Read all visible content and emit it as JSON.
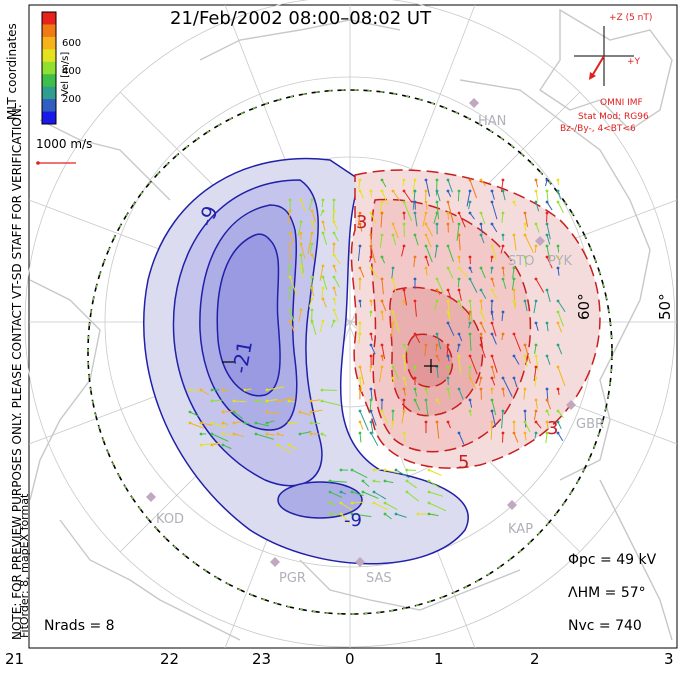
{
  "title": "21/Feb/2002 08:00–08:02 UT",
  "side_notes": {
    "preview": "NOTE: FOR PREVIEW PURPOSES ONLY. PLEASE CONTACT VT-SD STAFF FOR VERIFICATION.",
    "fitorder": "FitOrder: 8, mapEX format",
    "coords": "MLT coordinates"
  },
  "colorbar": {
    "title": "Vel [m/s]",
    "ticks": [
      "600",
      "400",
      "200"
    ],
    "colors": [
      "#e8231c",
      "#f07a14",
      "#f5b21a",
      "#e4e21e",
      "#8fe032",
      "#3fbf4a",
      "#2f9e8e",
      "#2f5fc0",
      "#1a1ae8"
    ]
  },
  "scale_vector": {
    "label": "1000 m/s"
  },
  "imf": {
    "axis_z": "+Z (5 nT)",
    "axis_y": "+Y",
    "source": "OMNI IMF",
    "model": "Stat Mod: RG96",
    "condition": "Bz-/By-, 4<BT<6"
  },
  "latitude_labels": [
    "60°",
    "50°"
  ],
  "contour_labels": [
    "-9",
    "-21",
    "-9",
    "3",
    "3",
    "5"
  ],
  "stations": [
    "HAN",
    "STO",
    "PYK",
    "GBR",
    "KAP",
    "SAS",
    "PGR",
    "KOD"
  ],
  "stats": {
    "phi_pc": "Φpc = 49 kV",
    "lambda_hm": "ΛHM = 57°",
    "n_vc": "Nvc = 740",
    "n_rads": "Nrads = 8"
  },
  "mlt_ticks": [
    "21",
    "22",
    "23",
    "0",
    "1",
    "2",
    "3"
  ],
  "colors": {
    "dusk_cell": "#2020a8",
    "dawn_cell": "#c81e1e",
    "boundary_dash": "#80d040",
    "coast": "#c8c8c8"
  }
}
